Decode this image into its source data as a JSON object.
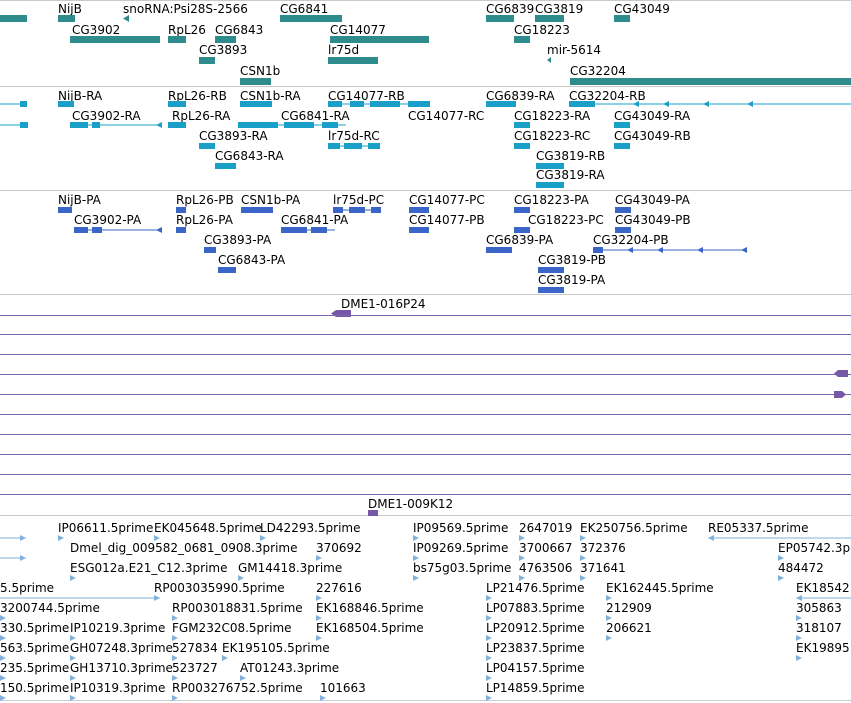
{
  "colors": {
    "gene": "#2f8c8c",
    "transcript": "#1aa0c8",
    "protein": "#3b66c8",
    "clone": "#7658a8",
    "est": "#7fb2df",
    "separator": "#c9c9c9"
  },
  "gene_track": {
    "labels": [
      "NijB",
      "snoRNA:Psi28S-2566",
      "CG6841",
      "CG6839",
      "CG3819",
      "CG43049",
      "CG3902",
      "RpL26",
      "CG6843",
      "CG14077",
      "CG18223",
      "CG3893",
      "lr75d",
      "mir-5614",
      "CSN1b",
      "CG32204"
    ]
  },
  "transcript_track": {
    "labels": [
      "NijB-RA",
      "RpL26-RB",
      "CSN1b-RA",
      "CG14077-RB",
      "CG6839-RA",
      "CG32204-RB",
      "CG3902-RA",
      "RpL26-RA",
      "CG6841-RA",
      "CG14077-RC",
      "CG18223-RA",
      "CG43049-RA",
      "CG3893-RA",
      "lr75d-RC",
      "CG18223-RC",
      "CG43049-RB",
      "CG6843-RA",
      "CG3819-RB",
      "CG3819-RA"
    ]
  },
  "protein_track": {
    "labels": [
      "NijB-PA",
      "RpL26-PB",
      "CSN1b-PA",
      "lr75d-PC",
      "CG14077-PC",
      "CG18223-PA",
      "CG43049-PA",
      "CG3902-PA",
      "RpL26-PA",
      "CG6841-PA",
      "CG14077-PB",
      "CG18223-PC",
      "CG43049-PB",
      "CG3893-PA",
      "CG6839-PA",
      "CG32204-PB",
      "CG6843-PA",
      "CG3819-PB",
      "CG3819-PA"
    ]
  },
  "clone_track": {
    "labels": [
      "DME1-016P24",
      "DME1-009K12"
    ]
  },
  "est_track": {
    "labels": [
      "IP06611.5prime",
      "EK045648.5prime",
      "LD42293.5prime",
      "IP09569.5prime",
      "2647019",
      "EK250756.5prime",
      "RE05337.5prime",
      "Dmel_dig_009582_0681_0908.3prime",
      "370692",
      "IP09269.5prime",
      "3700667",
      "372376",
      "EP05742.3p",
      "ESG012a.E21_C12.3prime",
      "GM14418.3prime",
      "bs75g03.5prime",
      "4763506",
      "371641",
      "484472",
      "5.5prime",
      "RP003035990.5prime",
      "227616",
      "LP21476.5prime",
      "EK162445.5prime",
      "EK18542",
      "3200744.5prime",
      "RP003018831.5prime",
      "EK168846.5prime",
      "LP07883.5prime",
      "212909",
      "305863",
      "330.5prime",
      "IP10219.3prime",
      "FGM232C08.5prime",
      "EK168504.5prime",
      "LP20912.5prime",
      "206621",
      "318107",
      "563.5prime",
      "GH07248.3prime",
      "527834",
      "EK195105.5prime",
      "LP23837.5prime",
      "EK19895",
      "235.5prime",
      "GH13710.3prime",
      "523727",
      "AT01243.3prime",
      "LP04157.5prime",
      "150.5prime",
      "IP10319.3prime",
      "RP003276752.5prime",
      "101663",
      "LP14859.5prime"
    ]
  }
}
